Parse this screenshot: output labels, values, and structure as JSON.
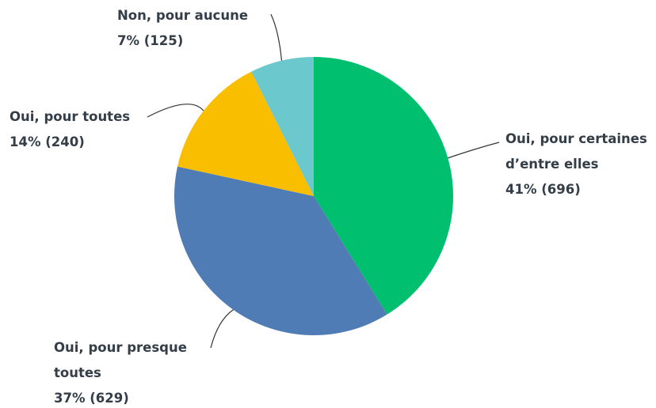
{
  "chart_data": {
    "type": "pie",
    "categories": [
      "Oui, pour certaines d’entre elles",
      "Oui, pour presque toutes",
      "Oui, pour toutes",
      "Non, pour aucune"
    ],
    "values": [
      696,
      629,
      240,
      125
    ],
    "value_labels": [
      "41% (696)",
      "37% (629)",
      "14% (240)",
      "7% (125)"
    ],
    "colors": [
      "#00bf6f",
      "#507cb6",
      "#f9be00",
      "#6bc8cd"
    ]
  }
}
